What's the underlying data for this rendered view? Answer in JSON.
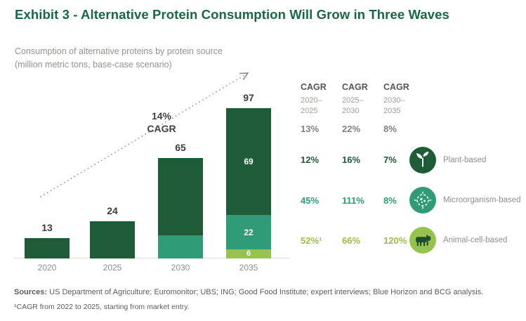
{
  "title": "Exhibit 3 - Alternative Protein Consumption Will Grow in Three Waves",
  "subtitle": {
    "line1": "Consumption of alternative proteins by protein source",
    "line2": "(million metric tons, base-case scenario)"
  },
  "colors": {
    "title_green": "#166a41",
    "plant": "#1d5c36",
    "microorganism": "#2f9c77",
    "animal_cell": "#96c24e",
    "gray_text": "#8f968f"
  },
  "chart_data": {
    "type": "bar",
    "stacked": true,
    "title": "Consumption of alternative proteins by protein source (million metric tons, base-case scenario)",
    "unit": "million metric tons",
    "categories": [
      "2020",
      "2025",
      "2030",
      "2035"
    ],
    "series": [
      {
        "name": "Plant-based",
        "key": "plant-based",
        "color": "#1d5c36",
        "values": [
          13,
          24,
          50,
          69
        ]
      },
      {
        "name": "Microorganism-based",
        "key": "microorganism-based",
        "color": "#2f9c77",
        "values": [
          0,
          0,
          15,
          22
        ]
      },
      {
        "name": "Animal-cell-based",
        "key": "animal-cell-based",
        "color": "#96c24e",
        "values": [
          0,
          0,
          0,
          6
        ]
      }
    ],
    "totals": [
      13,
      24,
      65,
      97
    ],
    "segment_label_category": "2035",
    "segment_labels_2035": [
      69,
      22,
      6
    ],
    "growth_annotation": {
      "line1": "14%",
      "line2": "CAGR"
    },
    "ylim": [
      0,
      100
    ],
    "legend_position": "right"
  },
  "cagr_table": {
    "columns": [
      {
        "label": "CAGR",
        "range_line1": "2020–",
        "range_line2": "2025"
      },
      {
        "label": "CAGR",
        "range_line1": "2025–",
        "range_line2": "2030"
      },
      {
        "label": "CAGR",
        "range_line1": "2030–",
        "range_line2": "2035"
      }
    ],
    "rows": [
      {
        "key": "total",
        "values": [
          "13%",
          "22%",
          "8%"
        ]
      },
      {
        "key": "plant-based",
        "label": "Plant-based",
        "values": [
          "12%",
          "16%",
          "7%"
        ]
      },
      {
        "key": "microorganism-based",
        "label": "Microorganism-based",
        "values": [
          "45%",
          "111%",
          "8%"
        ]
      },
      {
        "key": "animal-cell-based",
        "label": "Animal-cell-based",
        "values": [
          "52%¹",
          "66%",
          "120%"
        ]
      }
    ]
  },
  "footer": {
    "sources_label": "Sources:",
    "sources_text": "US Department of Agriculture; Euromonitor; UBS; ING; Good Food Institute; expert interviews; Blue Horizon and BCG analysis.",
    "footnote": "¹CAGR from 2022 to 2025, starting from market entry."
  }
}
